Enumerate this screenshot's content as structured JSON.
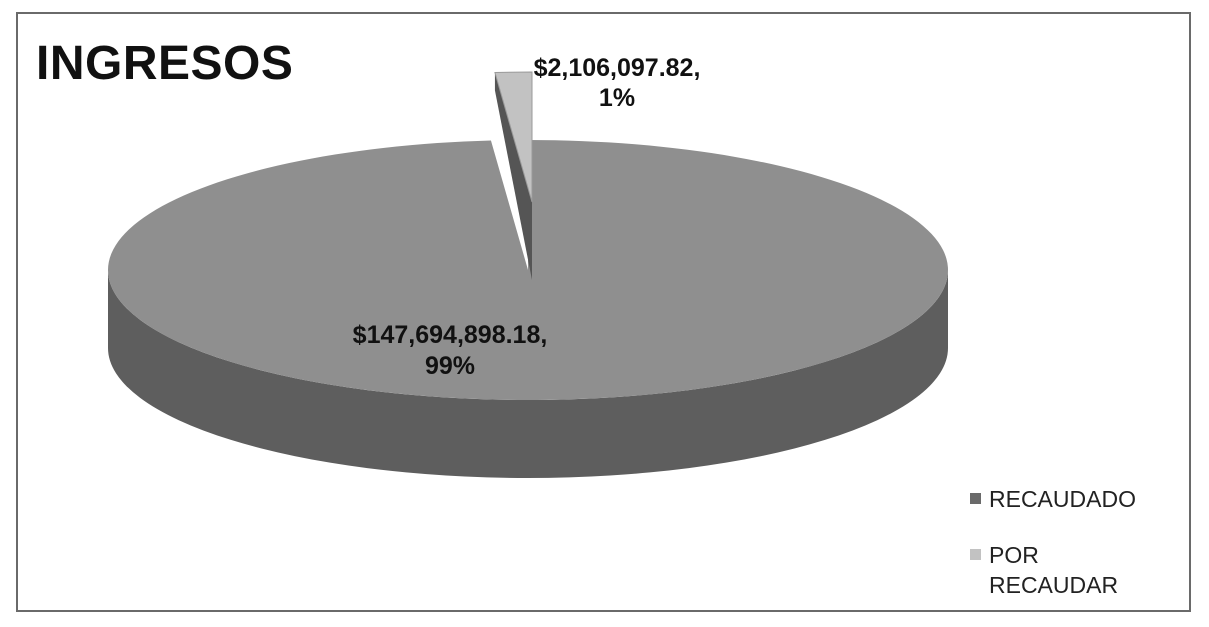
{
  "chart_data": {
    "type": "pie",
    "title": "INGRESOS",
    "slices": [
      {
        "name": "RECAUDADO",
        "value": 147694898.18,
        "percent": 99,
        "label_value": "$147,694,898.18,",
        "label_percent": "99%"
      },
      {
        "name": "POR RECAUDAR",
        "value": 2106097.82,
        "percent": 1,
        "label_value": "$2,106,097.82,",
        "label_percent": "1%"
      }
    ],
    "legend_position": "bottom-right",
    "style": "3d-exploded"
  },
  "colors": {
    "recaudado": "#8f8f8f",
    "recaudado_side": "#5e5e5e",
    "por_recaudar": "#c2c2c2",
    "por_recaudar_side": "#555555"
  }
}
